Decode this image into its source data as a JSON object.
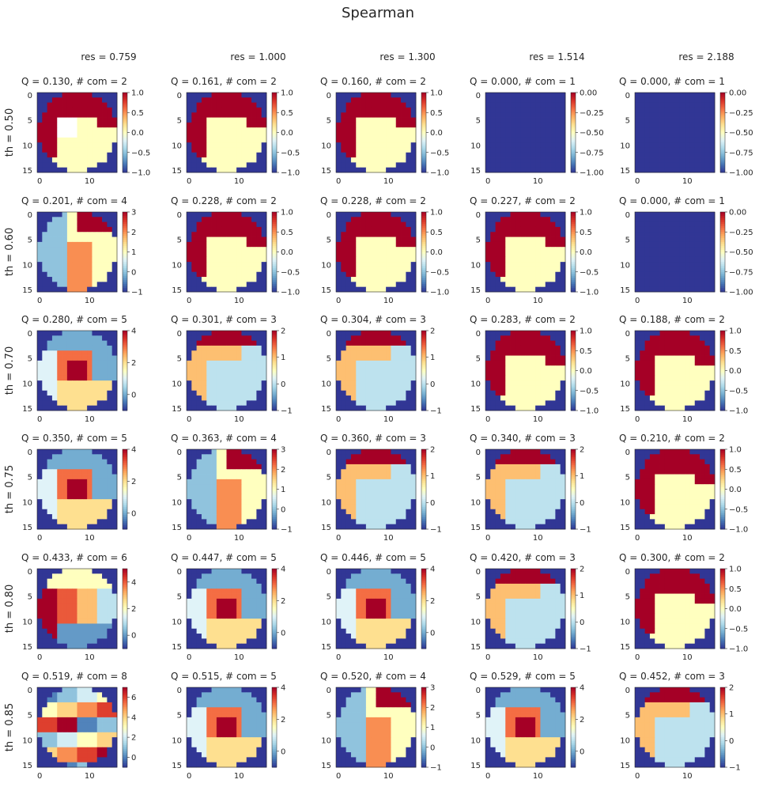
{
  "figure": {
    "title": "Spearman"
  },
  "colors": {
    "RdYlBu_r": [
      "#313695",
      "#4575b4",
      "#74add1",
      "#abd9e9",
      "#e0f3f8",
      "#ffffbf",
      "#fee090",
      "#fdae61",
      "#f46d43",
      "#d73027",
      "#a50026"
    ],
    "background": "#ffffff",
    "text": "#262626"
  },
  "chart_data": {
    "type": "heatmap",
    "colormap": "RdYlBu_r",
    "grid_size": 16,
    "x_tick_labels": [
      "0",
      "10"
    ],
    "y_tick_labels": [
      "0",
      "5",
      "10",
      "15"
    ],
    "columns": [
      "res = 0.759",
      "res = 1.000",
      "res = 1.300",
      "res = 1.514",
      "res = 2.188"
    ],
    "rows": [
      "th = 0.50",
      "th = 0.60",
      "th = 0.70",
      "th = 0.75",
      "th = 0.80",
      "th = 0.85"
    ],
    "panels": [
      [
        {
          "title": "Q = 0.130,  # com = 2",
          "vmin": -1,
          "vmax": 1,
          "ticks": [
            "1.0",
            "0.5",
            "0.0",
            "−0.5",
            "−1.0"
          ],
          "pattern": "half2w"
        },
        {
          "title": "Q = 0.161,  # com = 2",
          "vmin": -1,
          "vmax": 1,
          "ticks": [
            "1.0",
            "0.5",
            "0.0",
            "−0.5",
            "−1.0"
          ],
          "pattern": "half2"
        },
        {
          "title": "Q = 0.160,  # com = 2",
          "vmin": -1,
          "vmax": 1,
          "ticks": [
            "1.0",
            "0.5",
            "0.0",
            "−0.5",
            "−1.0"
          ],
          "pattern": "half2"
        },
        {
          "title": "Q = 0.000,  # com = 1",
          "vmin": -1,
          "vmax": 0,
          "ticks": [
            "0.00",
            "−0.25",
            "−0.50",
            "−0.75",
            "−1.00"
          ],
          "pattern": "full"
        },
        {
          "title": "Q = 0.000,  # com = 1",
          "vmin": -1,
          "vmax": 0,
          "ticks": [
            "0.00",
            "−0.25",
            "−0.50",
            "−0.75",
            "−1.00"
          ],
          "pattern": "full"
        }
      ],
      [
        {
          "title": "Q = 0.201,  # com = 4",
          "vmin": -1,
          "vmax": 3,
          "ticks": [
            "3",
            "2",
            "1",
            "0",
            "−1"
          ],
          "pattern": "multi4"
        },
        {
          "title": "Q = 0.228,  # com = 2",
          "vmin": -1,
          "vmax": 1,
          "ticks": [
            "1.0",
            "0.5",
            "0.0",
            "−0.5",
            "−1.0"
          ],
          "pattern": "half2"
        },
        {
          "title": "Q = 0.228,  # com = 2",
          "vmin": -1,
          "vmax": 1,
          "ticks": [
            "1.0",
            "0.5",
            "0.0",
            "−0.5",
            "−1.0"
          ],
          "pattern": "half2"
        },
        {
          "title": "Q = 0.227,  # com = 2",
          "vmin": -1,
          "vmax": 1,
          "ticks": [
            "1.0",
            "0.5",
            "0.0",
            "−0.5",
            "−1.0"
          ],
          "pattern": "half2"
        },
        {
          "title": "Q = 0.000,  # com = 1",
          "vmin": -1,
          "vmax": 0,
          "ticks": [
            "0.00",
            "−0.25",
            "−0.50",
            "−0.75",
            "−1.00"
          ],
          "pattern": "full"
        }
      ],
      [
        {
          "title": "Q = 0.280,  # com = 5",
          "vmin": -1,
          "vmax": 4,
          "ticks": [
            "4",
            "2",
            "0"
          ],
          "pattern": "multi5"
        },
        {
          "title": "Q = 0.301,  # com = 3",
          "vmin": -1,
          "vmax": 2,
          "ticks": [
            "2",
            "1",
            "0",
            "−1"
          ],
          "pattern": "multi3"
        },
        {
          "title": "Q = 0.304,  # com = 3",
          "vmin": -1,
          "vmax": 2,
          "ticks": [
            "2",
            "1",
            "0",
            "−1"
          ],
          "pattern": "multi3"
        },
        {
          "title": "Q = 0.283,  # com = 2",
          "vmin": -1,
          "vmax": 1,
          "ticks": [
            "1.0",
            "0.5",
            "0.0",
            "−0.5",
            "−1.0"
          ],
          "pattern": "half2"
        },
        {
          "title": "Q = 0.188,  # com = 2",
          "vmin": -1,
          "vmax": 1,
          "ticks": [
            "1.0",
            "0.5",
            "0.0",
            "−0.5",
            "−1.0"
          ],
          "pattern": "half2"
        }
      ],
      [
        {
          "title": "Q = 0.350,  # com = 5",
          "vmin": -1,
          "vmax": 4,
          "ticks": [
            "4",
            "2",
            "0"
          ],
          "pattern": "multi5"
        },
        {
          "title": "Q = 0.363,  # com = 4",
          "vmin": -1,
          "vmax": 3,
          "ticks": [
            "3",
            "2",
            "1",
            "0",
            "−1"
          ],
          "pattern": "multi4"
        },
        {
          "title": "Q = 0.360,  # com = 3",
          "vmin": -1,
          "vmax": 2,
          "ticks": [
            "2",
            "1",
            "0",
            "−1"
          ],
          "pattern": "multi3"
        },
        {
          "title": "Q = 0.340,  # com = 3",
          "vmin": -1,
          "vmax": 2,
          "ticks": [
            "2",
            "1",
            "0",
            "−1"
          ],
          "pattern": "multi3"
        },
        {
          "title": "Q = 0.210,  # com = 2",
          "vmin": -1,
          "vmax": 1,
          "ticks": [
            "1.0",
            "0.5",
            "0.0",
            "−0.5",
            "−1.0"
          ],
          "pattern": "half2"
        }
      ],
      [
        {
          "title": "Q = 0.433,  # com = 6",
          "vmin": -1,
          "vmax": 5,
          "ticks": [
            "4",
            "2",
            "0"
          ],
          "pattern": "multi6"
        },
        {
          "title": "Q = 0.447,  # com = 5",
          "vmin": -1,
          "vmax": 4,
          "ticks": [
            "4",
            "2",
            "0"
          ],
          "pattern": "multi5"
        },
        {
          "title": "Q = 0.446,  # com = 5",
          "vmin": -1,
          "vmax": 4,
          "ticks": [
            "4",
            "2",
            "0"
          ],
          "pattern": "multi5"
        },
        {
          "title": "Q = 0.420,  # com = 3",
          "vmin": -1,
          "vmax": 2,
          "ticks": [
            "2",
            "1",
            "0",
            "−1"
          ],
          "pattern": "multi3"
        },
        {
          "title": "Q = 0.300,  # com = 2",
          "vmin": -1,
          "vmax": 1,
          "ticks": [
            "1.0",
            "0.5",
            "0.0",
            "−0.5",
            "−1.0"
          ],
          "pattern": "half2"
        }
      ],
      [
        {
          "title": "Q = 0.519,  # com = 8",
          "vmin": -1,
          "vmax": 7,
          "ticks": [
            "6",
            "4",
            "2",
            "0"
          ],
          "pattern": "multi8"
        },
        {
          "title": "Q = 0.515,  # com = 5",
          "vmin": -1,
          "vmax": 4,
          "ticks": [
            "4",
            "2",
            "0"
          ],
          "pattern": "multi5"
        },
        {
          "title": "Q = 0.520,  # com = 4",
          "vmin": -1,
          "vmax": 3,
          "ticks": [
            "3",
            "2",
            "1",
            "0",
            "−1"
          ],
          "pattern": "multi4"
        },
        {
          "title": "Q = 0.529,  # com = 5",
          "vmin": -1,
          "vmax": 4,
          "ticks": [
            "4",
            "2",
            "0"
          ],
          "pattern": "multi5"
        },
        {
          "title": "Q = 0.452,  # com = 3",
          "vmin": -1,
          "vmax": 2,
          "ticks": [
            "2",
            "1",
            "0",
            "−1"
          ],
          "pattern": "multi3"
        }
      ]
    ]
  }
}
